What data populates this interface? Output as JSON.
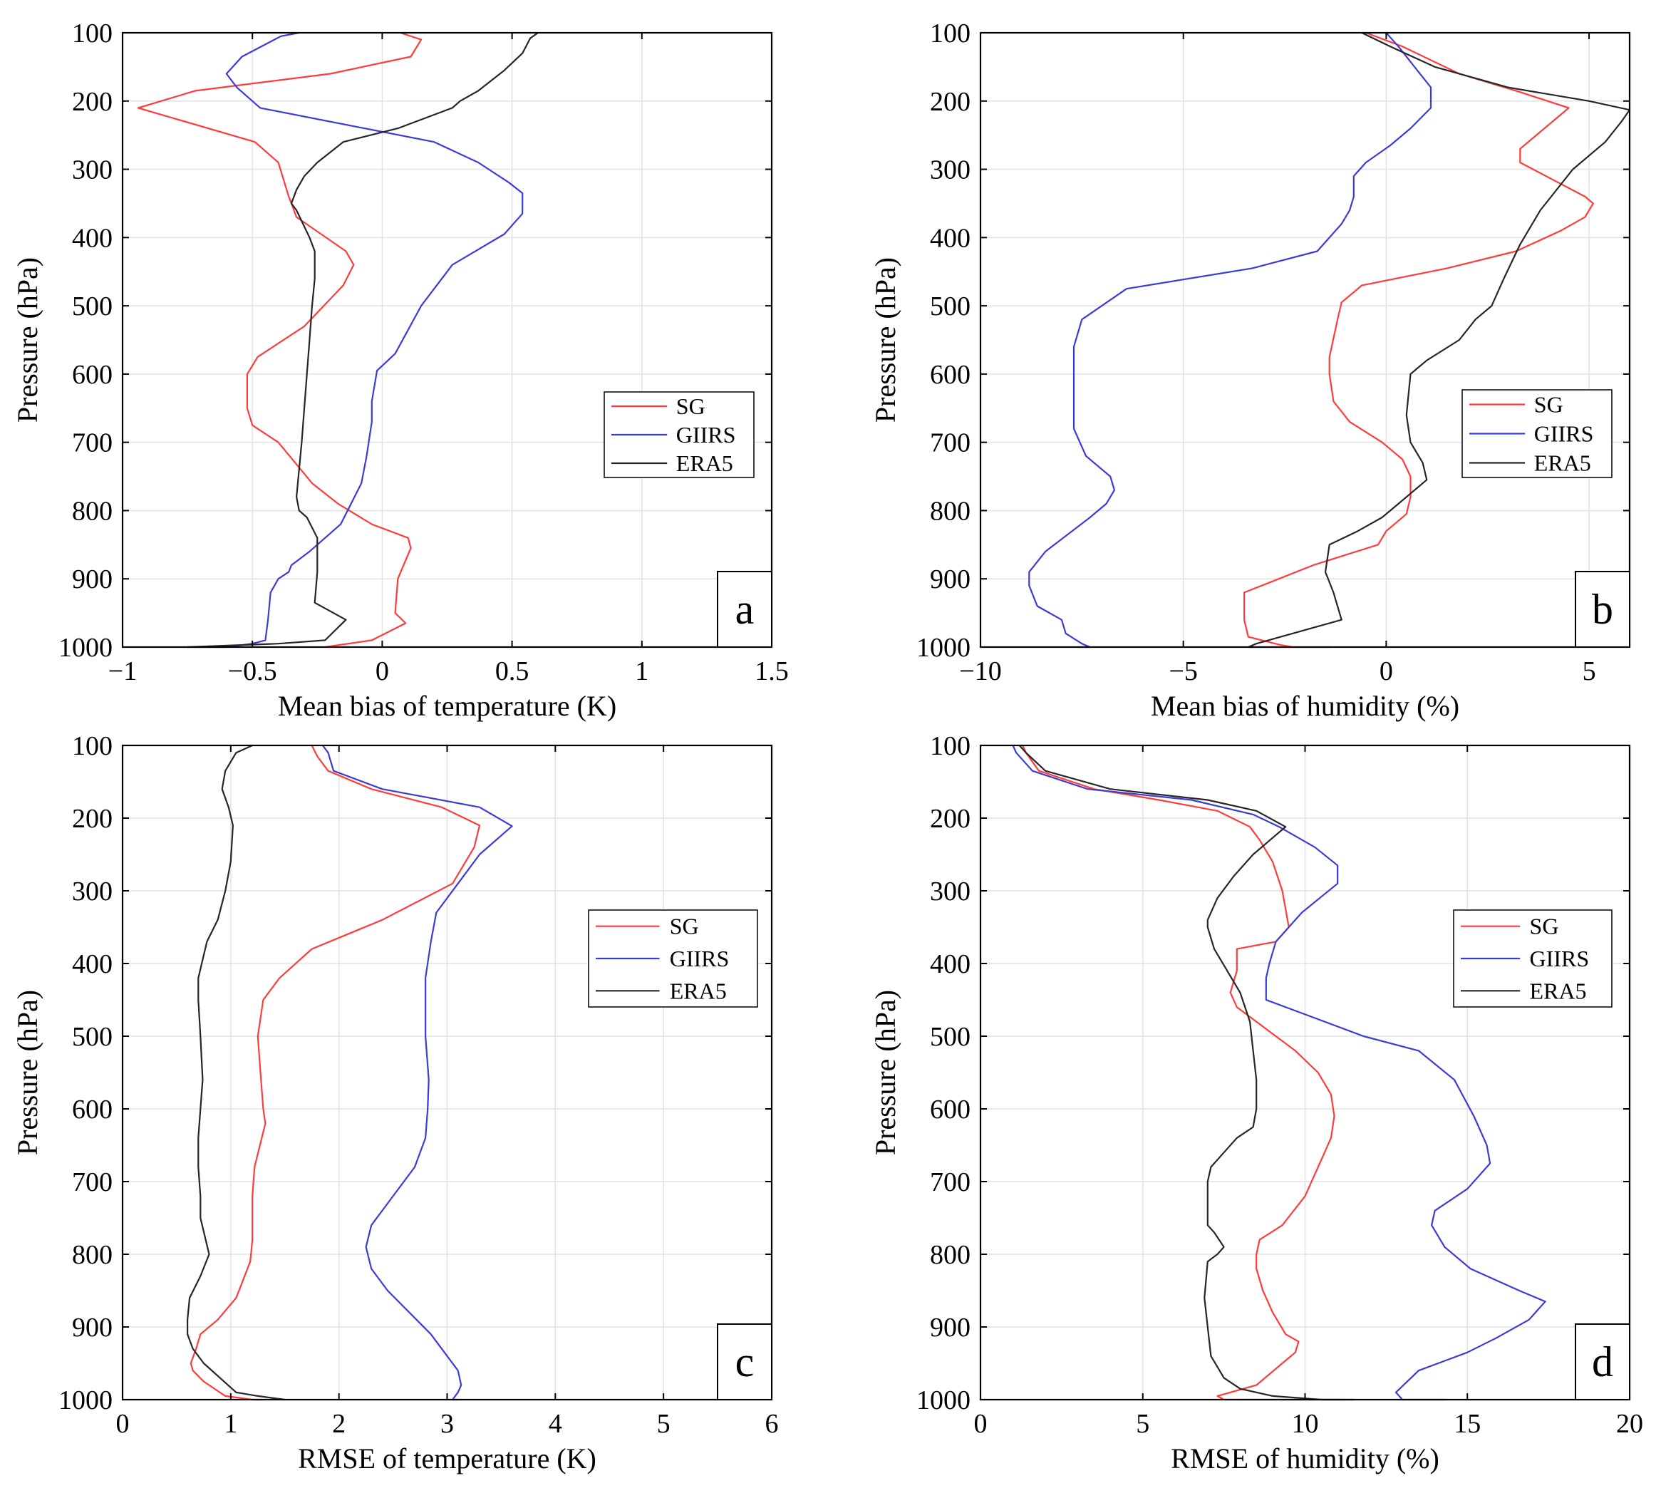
{
  "chart_data": [
    {
      "type": "line",
      "panel_label": "a",
      "xlabel": "Mean bias of temperature (K)",
      "ylabel": "Pressure (hPa)",
      "xlim": [
        -1,
        1.5
      ],
      "ylim": [
        100,
        1000
      ],
      "xticks": [
        -1,
        -0.5,
        0,
        0.5,
        1,
        1.5
      ],
      "xtick_labels": [
        "−1",
        "−0.5",
        "0",
        "0.5",
        "1",
        "1.5"
      ],
      "yticks": [
        100,
        200,
        300,
        400,
        500,
        600,
        700,
        800,
        900,
        1000
      ],
      "ytick_labels": [
        "100",
        "200",
        "300",
        "400",
        "500",
        "600",
        "700",
        "800",
        "900",
        "1000"
      ],
      "grid": true,
      "legend_position": "center-right",
      "series": [
        {
          "name": "SG",
          "color": "#ff3b3b",
          "x": [
            0.07,
            0.15,
            0.11,
            -0.2,
            -0.72,
            -0.94,
            -0.49,
            -0.4,
            -0.36,
            -0.35,
            -0.33,
            -0.14,
            -0.11,
            -0.15,
            -0.3,
            -0.48,
            -0.52,
            -0.52,
            -0.5,
            -0.4,
            -0.27,
            -0.17,
            -0.04,
            0.1,
            0.11,
            0.06,
            0.05,
            0.09,
            -0.04,
            -0.22
          ],
          "y": [
            100,
            110,
            135,
            160,
            185,
            210,
            260,
            290,
            340,
            350,
            370,
            420,
            440,
            470,
            530,
            575,
            600,
            650,
            675,
            700,
            760,
            790,
            820,
            840,
            855,
            900,
            950,
            965,
            990,
            1000
          ]
        },
        {
          "name": "GIIRS",
          "color": "#3b3bd9",
          "x": [
            -0.32,
            -0.39,
            -0.54,
            -0.6,
            -0.56,
            -0.47,
            0.2,
            0.37,
            0.49,
            0.54,
            0.54,
            0.47,
            0.27,
            0.15,
            0.05,
            -0.02,
            -0.04,
            -0.04,
            -0.06,
            -0.08,
            -0.16,
            -0.28,
            -0.35,
            -0.36,
            -0.4,
            -0.43,
            -0.44,
            -0.45,
            -0.5,
            -0.6,
            -0.75
          ],
          "y": [
            100,
            105,
            135,
            160,
            180,
            210,
            260,
            290,
            320,
            335,
            365,
            395,
            440,
            500,
            570,
            595,
            640,
            670,
            720,
            760,
            820,
            860,
            880,
            890,
            900,
            920,
            960,
            990,
            995,
            1000,
            1000
          ]
        },
        {
          "name": "ERA5",
          "color": "#262626",
          "x": [
            0.6,
            0.57,
            0.54,
            0.47,
            0.37,
            0.3,
            0.27,
            0.06,
            -0.15,
            -0.25,
            -0.3,
            -0.33,
            -0.35,
            -0.33,
            -0.28,
            -0.26,
            -0.26,
            -0.27,
            -0.28,
            -0.29,
            -0.31,
            -0.33,
            -0.32,
            -0.29,
            -0.25,
            -0.25,
            -0.25,
            -0.26,
            -0.14,
            -0.22,
            -0.4,
            -0.75
          ],
          "y": [
            100,
            108,
            130,
            155,
            185,
            200,
            210,
            240,
            260,
            290,
            310,
            330,
            350,
            360,
            400,
            420,
            460,
            500,
            550,
            600,
            700,
            780,
            800,
            810,
            840,
            860,
            890,
            935,
            960,
            990,
            995,
            1000
          ]
        }
      ]
    },
    {
      "type": "line",
      "panel_label": "b",
      "xlabel": "Mean bias of humidity (%)",
      "ylabel": "Pressure (hPa)",
      "xlim": [
        -10,
        6
      ],
      "ylim": [
        100,
        1000
      ],
      "xticks": [
        -10,
        -5,
        0,
        5
      ],
      "xtick_labels": [
        "−10",
        "−5",
        "0",
        "5"
      ],
      "yticks": [
        100,
        200,
        300,
        400,
        500,
        600,
        700,
        800,
        900,
        1000
      ],
      "ytick_labels": [
        "100",
        "200",
        "300",
        "400",
        "500",
        "600",
        "700",
        "800",
        "900",
        "1000"
      ],
      "grid": true,
      "legend_position": "center-right",
      "series": [
        {
          "name": "SG",
          "color": "#ff3b3b",
          "x": [
            -0.5,
            0.4,
            1.8,
            3.2,
            4.5,
            3.3,
            3.3,
            4.9,
            5.1,
            4.9,
            4.3,
            3.2,
            1.5,
            -0.6,
            -1.1,
            -1.2,
            -1.4,
            -1.4,
            -1.3,
            -0.9,
            -0.1,
            0.4,
            0.6,
            0.6,
            0.5,
            0.0,
            -0.2,
            -1.8,
            -3.5,
            -3.5,
            -3.4,
            -2.6,
            -2.3,
            -1.5,
            -1.4,
            -2.0,
            -3.4
          ],
          "y": [
            100,
            120,
            160,
            185,
            210,
            270,
            290,
            340,
            350,
            370,
            390,
            420,
            445,
            470,
            495,
            520,
            575,
            600,
            640,
            670,
            700,
            725,
            750,
            780,
            805,
            830,
            850,
            880,
            920,
            960,
            985,
            997,
            1000,
            1000,
            1000,
            1000,
            1000
          ]
        },
        {
          "name": "GIIRS",
          "color": "#3b3bd9",
          "x": [
            0.0,
            0.3,
            0.7,
            1.1,
            1.1,
            0.6,
            0.1,
            -0.5,
            -0.8,
            -0.8,
            -0.9,
            -1.1,
            -1.7,
            -3.3,
            -6.4,
            -7.5,
            -7.7,
            -7.7,
            -7.7,
            -7.4,
            -6.8,
            -6.7,
            -6.9,
            -7.3,
            -8.4,
            -8.8,
            -8.8,
            -8.6,
            -8.0,
            -7.9,
            -7.5,
            -7.3,
            -7.6
          ],
          "y": [
            100,
            120,
            150,
            180,
            210,
            240,
            265,
            290,
            310,
            340,
            360,
            380,
            420,
            445,
            475,
            520,
            560,
            590,
            680,
            720,
            750,
            770,
            790,
            810,
            860,
            890,
            910,
            940,
            960,
            980,
            995,
            1000,
            1000
          ]
        },
        {
          "name": "ERA5",
          "color": "#262626",
          "x": [
            -0.6,
            0.1,
            1.2,
            3.0,
            5.0,
            6.0,
            5.8,
            5.4,
            4.6,
            3.8,
            3.3,
            2.9,
            2.6,
            2.2,
            1.8,
            1.0,
            0.6,
            0.5,
            0.6,
            0.9,
            1.0,
            0.3,
            -0.1,
            -0.7,
            -1.4,
            -1.5,
            -1.3,
            -1.1,
            -2.3,
            -3.2,
            -3.4,
            -3.3
          ],
          "y": [
            100,
            120,
            150,
            180,
            200,
            213,
            230,
            260,
            300,
            360,
            410,
            460,
            500,
            520,
            550,
            580,
            600,
            660,
            700,
            730,
            755,
            790,
            810,
            830,
            850,
            890,
            920,
            960,
            980,
            995,
            1000,
            1000
          ]
        }
      ]
    },
    {
      "type": "line",
      "panel_label": "c",
      "xlabel": "RMSE of temperature (K)",
      "ylabel": "Pressure (hPa)",
      "xlim": [
        0,
        6
      ],
      "ylim": [
        100,
        1000
      ],
      "xticks": [
        0,
        1,
        2,
        3,
        4,
        5,
        6
      ],
      "xtick_labels": [
        "0",
        "1",
        "2",
        "3",
        "4",
        "5",
        "6"
      ],
      "yticks": [
        100,
        200,
        300,
        400,
        500,
        600,
        700,
        800,
        900,
        1000
      ],
      "ytick_labels": [
        "100",
        "200",
        "300",
        "400",
        "500",
        "600",
        "700",
        "800",
        "900",
        "1000"
      ],
      "grid": true,
      "legend_position": "upper-right",
      "series": [
        {
          "name": "SG",
          "color": "#ff3b3b",
          "x": [
            1.75,
            1.8,
            1.9,
            2.3,
            2.95,
            3.3,
            3.25,
            3.05,
            2.4,
            1.75,
            1.45,
            1.3,
            1.25,
            1.28,
            1.3,
            1.32,
            1.22,
            1.2,
            1.2,
            1.18,
            1.05,
            0.88,
            0.72,
            0.68,
            0.63,
            0.65,
            0.75,
            0.95,
            1.2,
            1.3
          ],
          "y": [
            100,
            115,
            135,
            160,
            185,
            210,
            240,
            290,
            340,
            380,
            420,
            450,
            500,
            560,
            600,
            620,
            680,
            720,
            780,
            810,
            860,
            890,
            910,
            930,
            950,
            960,
            975,
            995,
            1000,
            1000
          ]
        },
        {
          "name": "GIIRS",
          "color": "#3b3bd9",
          "x": [
            1.85,
            1.9,
            1.95,
            2.4,
            3.3,
            3.6,
            3.3,
            3.1,
            2.9,
            2.85,
            2.8,
            2.8,
            2.8,
            2.83,
            2.82,
            2.8,
            2.7,
            2.5,
            2.3,
            2.25,
            2.3,
            2.45,
            2.85,
            3.0,
            3.1,
            3.13,
            3.1,
            3.05,
            3.1
          ],
          "y": [
            100,
            110,
            135,
            160,
            185,
            211,
            250,
            290,
            330,
            370,
            420,
            450,
            500,
            560,
            600,
            640,
            680,
            720,
            760,
            790,
            820,
            850,
            910,
            940,
            960,
            980,
            990,
            1000,
            1000
          ]
        },
        {
          "name": "ERA5",
          "color": "#262626",
          "x": [
            1.2,
            1.05,
            0.95,
            0.92,
            0.98,
            1.02,
            1.0,
            0.95,
            0.88,
            0.78,
            0.7,
            0.7,
            0.72,
            0.74,
            0.72,
            0.7,
            0.7,
            0.72,
            0.72,
            0.8,
            0.72,
            0.62,
            0.6,
            0.6,
            0.65,
            0.75,
            1.05,
            1.25,
            1.5
          ],
          "y": [
            100,
            110,
            135,
            160,
            185,
            210,
            260,
            300,
            340,
            370,
            420,
            450,
            500,
            560,
            600,
            640,
            680,
            720,
            750,
            800,
            830,
            860,
            890,
            910,
            930,
            950,
            990,
            995,
            1000
          ]
        }
      ]
    },
    {
      "type": "line",
      "panel_label": "d",
      "xlabel": "RMSE of humidity (%)",
      "ylabel": "Pressure (hPa)",
      "xlim": [
        0,
        20
      ],
      "ylim": [
        100,
        1000
      ],
      "xticks": [
        0,
        5,
        10,
        15,
        20
      ],
      "xtick_labels": [
        "0",
        "5",
        "10",
        "15",
        "20"
      ],
      "yticks": [
        100,
        200,
        300,
        400,
        500,
        600,
        700,
        800,
        900,
        1000
      ],
      "ytick_labels": [
        "100",
        "200",
        "300",
        "400",
        "500",
        "600",
        "700",
        "800",
        "900",
        "1000"
      ],
      "grid": true,
      "legend_position": "upper-right",
      "series": [
        {
          "name": "SG",
          "color": "#ff3b3b",
          "x": [
            1.3,
            1.4,
            1.8,
            3.5,
            5.5,
            7.3,
            8.3,
            8.6,
            9.0,
            9.3,
            9.5,
            9.1,
            7.9,
            7.9,
            7.7,
            7.9,
            8.8,
            9.7,
            10.4,
            10.8,
            10.9,
            10.8,
            10.5,
            10.0,
            9.3,
            8.6,
            8.5,
            8.5,
            8.7,
            9.0,
            9.4,
            9.8,
            9.7,
            9.3,
            8.5,
            7.3,
            7.5,
            8.5,
            10.0,
            11.1
          ],
          "y": [
            100,
            110,
            135,
            160,
            175,
            190,
            212,
            230,
            260,
            300,
            350,
            370,
            380,
            410,
            440,
            460,
            490,
            520,
            550,
            580,
            610,
            640,
            670,
            720,
            760,
            780,
            800,
            820,
            850,
            880,
            910,
            920,
            935,
            950,
            980,
            995,
            1000,
            1000,
            1000,
            1000
          ]
        },
        {
          "name": "GIIRS",
          "color": "#3b3bd9",
          "x": [
            1.0,
            1.1,
            1.6,
            3.3,
            6.5,
            8.4,
            9.2,
            10.3,
            11.0,
            11.0,
            9.9,
            9.1,
            8.9,
            8.8,
            8.8,
            10.0,
            11.8,
            13.5,
            14.6,
            15.2,
            15.6,
            15.7,
            15.0,
            14.0,
            13.9,
            14.3,
            15.1,
            16.6,
            17.4,
            16.9,
            15.9,
            15.0,
            13.5,
            12.8,
            13.0,
            14.3
          ],
          "y": [
            100,
            110,
            135,
            160,
            175,
            195,
            212,
            240,
            265,
            290,
            330,
            370,
            400,
            420,
            450,
            470,
            500,
            520,
            560,
            610,
            650,
            675,
            710,
            740,
            760,
            790,
            820,
            850,
            865,
            890,
            915,
            935,
            960,
            990,
            1000,
            1000
          ]
        },
        {
          "name": "ERA5",
          "color": "#262626",
          "x": [
            1.2,
            1.4,
            2.0,
            4.0,
            7.0,
            8.5,
            9.4,
            8.4,
            7.8,
            7.3,
            7.0,
            7.0,
            7.2,
            7.6,
            8.0,
            8.3,
            8.4,
            8.5,
            8.5,
            8.4,
            7.9,
            7.5,
            7.1,
            7.0,
            7.0,
            7.0,
            7.2,
            7.5,
            7.3,
            7.0,
            6.9,
            7.0,
            7.1,
            7.3,
            7.5,
            8.0,
            9.0,
            10.5,
            11.5
          ],
          "y": [
            100,
            110,
            135,
            160,
            175,
            190,
            212,
            250,
            280,
            310,
            340,
            350,
            380,
            410,
            440,
            480,
            520,
            560,
            600,
            625,
            640,
            660,
            680,
            700,
            740,
            760,
            770,
            790,
            800,
            810,
            860,
            900,
            940,
            955,
            970,
            985,
            995,
            1000,
            1000
          ]
        }
      ]
    }
  ]
}
